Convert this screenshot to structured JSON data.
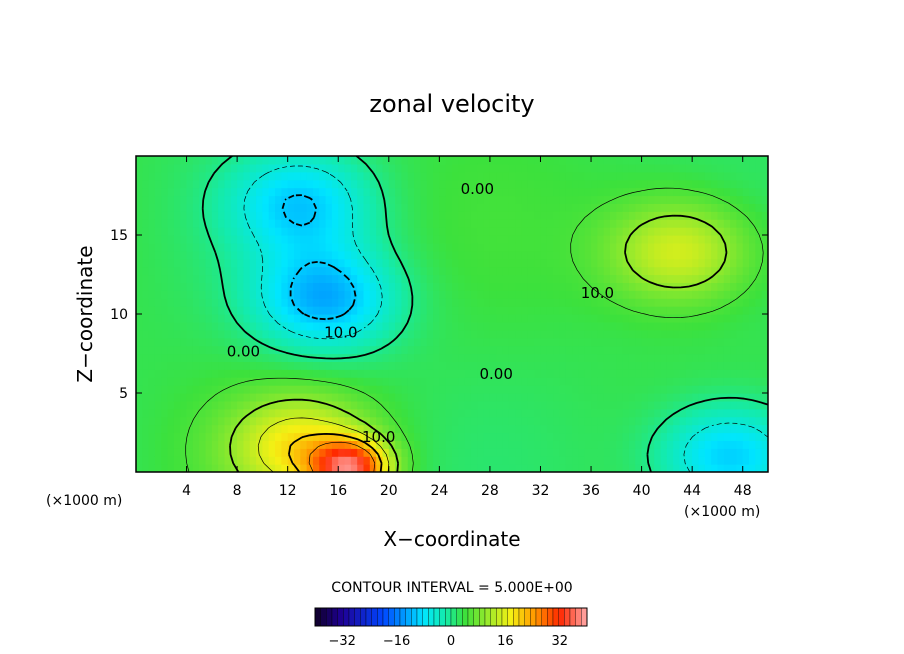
{
  "chart_data": {
    "type": "heatmap",
    "title": "zonal velocity",
    "xlabel": "X−coordinate",
    "ylabel": "Z−coordinate",
    "x_unit": "(×1000 m)",
    "y_unit": "(×1000 m)",
    "xlim": [
      0,
      50
    ],
    "ylim": [
      0,
      20
    ],
    "x_ticks": [
      4,
      8,
      12,
      16,
      20,
      24,
      28,
      32,
      36,
      40,
      44,
      48
    ],
    "y_ticks": [
      5,
      10,
      15
    ],
    "contour_interval_text": "CONTOUR INTERVAL = 5.000E+00",
    "contour_labels": [
      {
        "text": "0.00",
        "x": 27,
        "z": 17.6
      },
      {
        "text": "10.0",
        "x": 36.5,
        "z": 11.0
      },
      {
        "text": "10.0",
        "x": 16.2,
        "z": 8.5
      },
      {
        "text": "0.00",
        "x": 8.5,
        "z": 7.3
      },
      {
        "text": "0.00",
        "x": 28.5,
        "z": 5.9
      },
      {
        "text": "10.0",
        "x": 19.2,
        "z": 1.9
      }
    ],
    "colorbar": {
      "range": [
        -40,
        40
      ],
      "ticks": [
        "−32",
        "−16",
        "0",
        "16",
        "32"
      ],
      "tick_values": [
        -32,
        -16,
        0,
        16,
        32
      ]
    },
    "field_features": [
      {
        "kind": "min",
        "x": 15,
        "z": 11,
        "value": -12
      },
      {
        "kind": "min",
        "x": 13,
        "z": 17,
        "value": -9
      },
      {
        "kind": "min",
        "x": 47,
        "z": 1,
        "value": -11
      },
      {
        "kind": "max",
        "x": 43,
        "z": 14,
        "value": 16
      },
      {
        "kind": "max",
        "x": 17,
        "z": 0.3,
        "value": 30
      },
      {
        "kind": "max",
        "x": 13,
        "z": 1.6,
        "value": 18
      }
    ]
  }
}
